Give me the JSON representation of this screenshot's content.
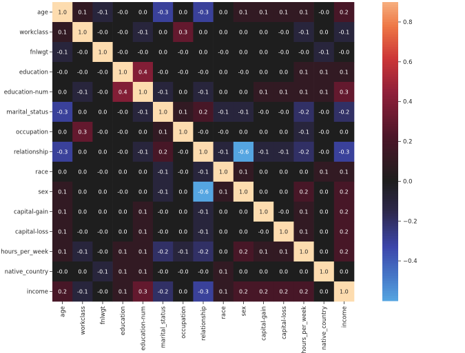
{
  "chart_data": {
    "type": "heatmap",
    "title": "",
    "xlabel": "",
    "ylabel": "",
    "labels": [
      "age",
      "workclass",
      "fnlwgt",
      "education",
      "education-num",
      "marital_status",
      "occupation",
      "relationship",
      "race",
      "sex",
      "capital-gain",
      "capital-loss",
      "hours_per_week",
      "native_country",
      "income"
    ],
    "matrix": [
      [
        "1.0",
        "0.1",
        "-0.1",
        "-0.0",
        "0.0",
        "-0.3",
        "0.0",
        "-0.3",
        "0.0",
        "0.1",
        "0.1",
        "0.1",
        "0.1",
        "-0.0",
        "0.2"
      ],
      [
        "0.1",
        "1.0",
        "-0.0",
        "-0.0",
        "-0.1",
        "0.0",
        "0.3",
        "0.0",
        "0.0",
        "0.0",
        "0.0",
        "-0.0",
        "-0.1",
        "0.0",
        "-0.1"
      ],
      [
        "-0.1",
        "-0.0",
        "1.0",
        "-0.0",
        "-0.0",
        "0.0",
        "-0.0",
        "0.0",
        "-0.0",
        "0.0",
        "0.0",
        "-0.0",
        "-0.0",
        "-0.1",
        "-0.0"
      ],
      [
        "-0.0",
        "-0.0",
        "-0.0",
        "1.0",
        "0.4",
        "-0.0",
        "-0.0",
        "-0.0",
        "0.0",
        "-0.0",
        "0.0",
        "0.0",
        "0.1",
        "0.1",
        "0.1"
      ],
      [
        "0.0",
        "-0.1",
        "-0.0",
        "0.4",
        "1.0",
        "-0.1",
        "0.0",
        "-0.1",
        "0.0",
        "0.0",
        "0.1",
        "0.1",
        "0.1",
        "0.1",
        "0.3"
      ],
      [
        "-0.3",
        "0.0",
        "0.0",
        "-0.0",
        "-0.1",
        "1.0",
        "0.1",
        "0.2",
        "-0.1",
        "-0.1",
        "-0.0",
        "-0.0",
        "-0.2",
        "-0.0",
        "-0.2"
      ],
      [
        "0.0",
        "0.3",
        "-0.0",
        "-0.0",
        "0.0",
        "0.1",
        "1.0",
        "-0.0",
        "-0.0",
        "0.0",
        "0.0",
        "0.0",
        "-0.1",
        "-0.0",
        "0.0"
      ],
      [
        "-0.3",
        "0.0",
        "0.0",
        "-0.0",
        "-0.1",
        "0.2",
        "-0.0",
        "1.0",
        "-0.1",
        "-0.6",
        "-0.1",
        "-0.1",
        "-0.2",
        "-0.0",
        "-0.3"
      ],
      [
        "0.0",
        "0.0",
        "-0.0",
        "0.0",
        "0.0",
        "-0.1",
        "-0.0",
        "-0.1",
        "1.0",
        "0.1",
        "0.0",
        "0.0",
        "0.0",
        "0.1",
        "0.1"
      ],
      [
        "0.1",
        "0.0",
        "0.0",
        "-0.0",
        "0.0",
        "-0.1",
        "0.0",
        "-0.6",
        "0.1",
        "1.0",
        "0.0",
        "0.0",
        "0.2",
        "0.0",
        "0.2"
      ],
      [
        "0.1",
        "0.0",
        "0.0",
        "0.0",
        "0.1",
        "-0.0",
        "0.0",
        "-0.1",
        "0.0",
        "0.0",
        "1.0",
        "-0.0",
        "0.1",
        "0.0",
        "0.2"
      ],
      [
        "0.1",
        "-0.0",
        "-0.0",
        "0.0",
        "0.1",
        "-0.0",
        "0.0",
        "-0.1",
        "0.0",
        "0.0",
        "-0.0",
        "1.0",
        "0.1",
        "0.0",
        "0.2"
      ],
      [
        "0.1",
        "-0.1",
        "-0.0",
        "0.1",
        "0.1",
        "-0.2",
        "-0.1",
        "-0.2",
        "0.0",
        "0.2",
        "0.1",
        "0.1",
        "1.0",
        "0.0",
        "0.2"
      ],
      [
        "-0.0",
        "0.0",
        "-0.1",
        "0.1",
        "0.1",
        "-0.0",
        "-0.0",
        "-0.0",
        "0.1",
        "0.0",
        "0.0",
        "0.0",
        "0.0",
        "1.0",
        "0.0"
      ],
      [
        "0.2",
        "-0.1",
        "-0.0",
        "0.1",
        "0.3",
        "-0.2",
        "0.0",
        "-0.3",
        "0.1",
        "0.2",
        "0.2",
        "0.2",
        "0.2",
        "0.0",
        "1.0"
      ]
    ],
    "colormap": "icefire",
    "center": 0.0,
    "vmin": -0.6,
    "vmax": 1.0,
    "colorbar_max_shown": 0.9,
    "colorbar_ticks": [
      "0.8",
      "0.6",
      "0.4",
      "0.2",
      "0.0",
      "−0.2",
      "−0.4"
    ],
    "colorbar_tick_values": [
      0.8,
      0.6,
      0.4,
      0.2,
      0.0,
      -0.2,
      -0.4
    ],
    "annotate": true,
    "grid": false
  }
}
